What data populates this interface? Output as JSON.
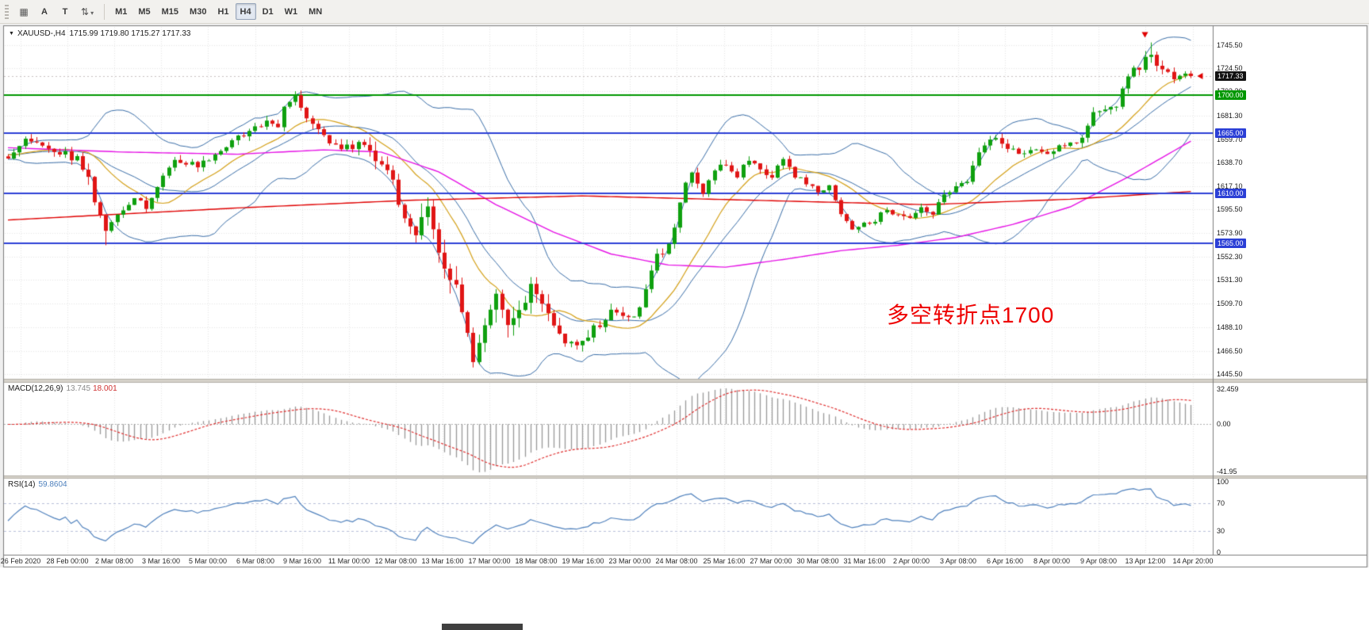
{
  "toolbar": {
    "icons": [
      "▦",
      "⇅"
    ],
    "tools": [
      "A",
      "T"
    ],
    "dropdown_caret": "▾",
    "timeframes": [
      {
        "label": "M1",
        "active": false
      },
      {
        "label": "M5",
        "active": false
      },
      {
        "label": "M15",
        "active": false
      },
      {
        "label": "M30",
        "active": false
      },
      {
        "label": "H1",
        "active": false
      },
      {
        "label": "H4",
        "active": true
      },
      {
        "label": "D1",
        "active": false
      },
      {
        "label": "W1",
        "active": false
      },
      {
        "label": "MN",
        "active": false
      }
    ]
  },
  "chart": {
    "title_symbol": "XAUUSD-,H4",
    "title_ohlc": "1715.99 1719.80 1715.27 1717.33",
    "symbol_dropdown_glyph": "▼",
    "annotation": {
      "text": "多空转折点1700",
      "color": "#ee0000"
    },
    "price_axis_labels": [
      "1745.50",
      "1724.50",
      "1703.30",
      "1681.30",
      "1659.70",
      "1638.70",
      "1617.10",
      "1595.50",
      "1573.90",
      "1552.30",
      "1531.30",
      "1509.70",
      "1488.10",
      "1466.50",
      "1445.50"
    ],
    "hlines": [
      {
        "price": 1700.0,
        "label": "1700.00",
        "color": "#009700"
      },
      {
        "price": 1665.0,
        "label": "1665.00",
        "color": "#2b3fd6"
      },
      {
        "price": 1610.0,
        "label": "1610.00",
        "color": "#2b3fd6"
      },
      {
        "price": 1565.0,
        "label": "1565.00",
        "color": "#2b3fd6"
      }
    ],
    "current_price": {
      "label": "1717.33",
      "price": 1717.33
    },
    "time_axis": [
      "26 Feb 2020",
      "28 Feb 00:00",
      "2 Mar 08:00",
      "3 Mar 16:00",
      "5 Mar 00:00",
      "6 Mar 08:00",
      "9 Mar 16:00",
      "11 Mar 00:00",
      "12 Mar 08:00",
      "13 Mar 16:00",
      "17 Mar 00:00",
      "18 Mar 08:00",
      "19 Mar 16:00",
      "23 Mar 00:00",
      "24 Mar 08:00",
      "25 Mar 16:00",
      "27 Mar 00:00",
      "30 Mar 08:00",
      "31 Mar 16:00",
      "2 Apr 00:00",
      "3 Apr 08:00",
      "6 Apr 16:00",
      "8 Apr 00:00",
      "9 Apr 08:00",
      "13 Apr 12:00",
      "14 Apr 20:00"
    ]
  },
  "macd": {
    "label": "MACD(12,26,9)",
    "value_main": "13.745",
    "value_signal": "18.001",
    "axis": [
      "32.459",
      "0.00",
      "-41.95"
    ]
  },
  "rsi": {
    "label": "RSI(14)",
    "value": "59.8604",
    "axis": [
      "100",
      "70",
      "30",
      "0"
    ],
    "levels": [
      70,
      30
    ]
  },
  "chart_data": {
    "type": "candlestick",
    "symbol": "XAUUSD",
    "period": "H4",
    "visible_price_range": [
      1445.5,
      1745.5
    ],
    "visible_date_range": [
      "26 Feb 2020",
      "15 Apr 2020"
    ],
    "key_levels": [
      1700,
      1665,
      1610,
      1565
    ],
    "last_ohlc": {
      "open": 1715.99,
      "high": 1719.8,
      "low": 1715.27,
      "close": 1717.33
    },
    "last_close": 1717.33,
    "candle_count": 207,
    "close_anchors": [
      [
        0,
        1644
      ],
      [
        3,
        1658
      ],
      [
        8,
        1650
      ],
      [
        12,
        1642
      ],
      [
        14,
        1622
      ],
      [
        16,
        1590
      ],
      [
        17,
        1577
      ],
      [
        19,
        1592
      ],
      [
        22,
        1606
      ],
      [
        24,
        1598
      ],
      [
        27,
        1628
      ],
      [
        29,
        1640
      ],
      [
        33,
        1636
      ],
      [
        36,
        1645
      ],
      [
        39,
        1658
      ],
      [
        42,
        1668
      ],
      [
        45,
        1674
      ],
      [
        47,
        1670
      ],
      [
        48,
        1692
      ],
      [
        50,
        1698
      ],
      [
        52,
        1680
      ],
      [
        55,
        1662
      ],
      [
        58,
        1650
      ],
      [
        61,
        1656
      ],
      [
        64,
        1642
      ],
      [
        66,
        1634
      ],
      [
        68,
        1600
      ],
      [
        71,
        1572
      ],
      [
        73,
        1592
      ],
      [
        75,
        1562
      ],
      [
        77,
        1532
      ],
      [
        79,
        1508
      ],
      [
        81,
        1462
      ],
      [
        83,
        1492
      ],
      [
        85,
        1512
      ],
      [
        87,
        1486
      ],
      [
        89,
        1502
      ],
      [
        91,
        1522
      ],
      [
        93,
        1512
      ],
      [
        95,
        1492
      ],
      [
        97,
        1476
      ],
      [
        99,
        1470
      ],
      [
        101,
        1482
      ],
      [
        103,
        1492
      ],
      [
        105,
        1502
      ],
      [
        107,
        1498
      ],
      [
        109,
        1496
      ],
      [
        111,
        1522
      ],
      [
        113,
        1552
      ],
      [
        115,
        1562
      ],
      [
        117,
        1602
      ],
      [
        119,
        1632
      ],
      [
        121,
        1612
      ],
      [
        123,
        1632
      ],
      [
        125,
        1636
      ],
      [
        127,
        1626
      ],
      [
        129,
        1642
      ],
      [
        131,
        1632
      ],
      [
        133,
        1626
      ],
      [
        135,
        1642
      ],
      [
        137,
        1626
      ],
      [
        139,
        1620
      ],
      [
        141,
        1612
      ],
      [
        143,
        1616
      ],
      [
        145,
        1592
      ],
      [
        147,
        1576
      ],
      [
        149,
        1582
      ],
      [
        151,
        1586
      ],
      [
        153,
        1596
      ],
      [
        155,
        1590
      ],
      [
        157,
        1586
      ],
      [
        159,
        1596
      ],
      [
        161,
        1590
      ],
      [
        163,
        1610
      ],
      [
        165,
        1616
      ],
      [
        167,
        1622
      ],
      [
        169,
        1650
      ],
      [
        171,
        1662
      ],
      [
        173,
        1656
      ],
      [
        175,
        1650
      ],
      [
        177,
        1646
      ],
      [
        179,
        1652
      ],
      [
        181,
        1646
      ],
      [
        183,
        1652
      ],
      [
        185,
        1656
      ],
      [
        187,
        1662
      ],
      [
        189,
        1682
      ],
      [
        191,
        1686
      ],
      [
        193,
        1692
      ],
      [
        195,
        1718
      ],
      [
        197,
        1726
      ],
      [
        199,
        1738
      ],
      [
        201,
        1722
      ],
      [
        203,
        1716
      ],
      [
        205,
        1720
      ],
      [
        206,
        1717.33
      ]
    ],
    "vol_anchors": [
      [
        0,
        4
      ],
      [
        10,
        6
      ],
      [
        14,
        9
      ],
      [
        18,
        5
      ],
      [
        50,
        5
      ],
      [
        60,
        7
      ],
      [
        66,
        12
      ],
      [
        74,
        16
      ],
      [
        84,
        14
      ],
      [
        96,
        9
      ],
      [
        104,
        7
      ],
      [
        112,
        6
      ],
      [
        140,
        4
      ],
      [
        156,
        4
      ],
      [
        168,
        5
      ],
      [
        186,
        5
      ],
      [
        194,
        6
      ],
      [
        200,
        6
      ],
      [
        206,
        3
      ]
    ],
    "extremes": [
      [
        17,
        "low",
        1563
      ],
      [
        50,
        "high",
        1703.5
      ],
      [
        81,
        "low",
        1451.5
      ],
      [
        199,
        "high",
        1748
      ]
    ],
    "red_ma_anchors": [
      [
        0,
        1586
      ],
      [
        40,
        1597
      ],
      [
        70,
        1604
      ],
      [
        100,
        1608
      ],
      [
        130,
        1604
      ],
      [
        160,
        1600
      ],
      [
        185,
        1605
      ],
      [
        206,
        1612
      ]
    ],
    "magenta_ma_anchors": [
      [
        0,
        1652
      ],
      [
        20,
        1648
      ],
      [
        40,
        1646
      ],
      [
        55,
        1650
      ],
      [
        65,
        1648
      ],
      [
        75,
        1630
      ],
      [
        85,
        1600
      ],
      [
        95,
        1575
      ],
      [
        105,
        1555
      ],
      [
        115,
        1545
      ],
      [
        125,
        1543
      ],
      [
        135,
        1550
      ],
      [
        145,
        1558
      ],
      [
        155,
        1563
      ],
      [
        165,
        1570
      ],
      [
        175,
        1582
      ],
      [
        185,
        1598
      ],
      [
        195,
        1625
      ],
      [
        206,
        1658
      ]
    ],
    "colors": {
      "up": "#0fa00f",
      "down": "#e01515",
      "bollinger": "#3a6ea8",
      "ma_fast": "#d4a017",
      "ma_mid": "#e613e6",
      "ma_slow": "#e00000",
      "macd_hist": "#9a9a9a",
      "macd_signal": "#e03030",
      "rsi_line": "#4f81bd"
    }
  }
}
